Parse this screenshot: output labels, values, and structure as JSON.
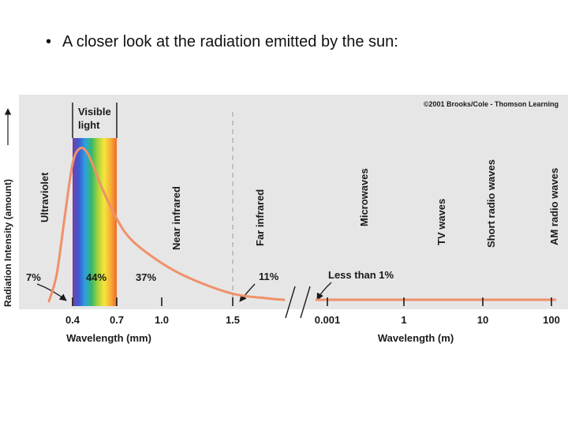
{
  "slide": {
    "bullet": "•",
    "text": "A closer look at the radiation emitted by the sun:"
  },
  "copyright": "©2001 Brooks/Cole - Thomson Learning",
  "colors": {
    "panel_bg": "#e6e6e6",
    "curve": "#f0906a",
    "spectrum": [
      "#7b3fa0",
      "#3a5bd4",
      "#2fa0e0",
      "#33b86a",
      "#a8d23a",
      "#f5e63c",
      "#f7b035",
      "#ef6a2a"
    ]
  },
  "chart_data": {
    "type": "line",
    "ylabel": "Radiation Intensity (amount)",
    "axes": [
      {
        "xlabel": "Wavelength (mm)",
        "ticks": [
          "0.4",
          "0.7",
          "1.0",
          "1.5"
        ]
      },
      {
        "xlabel": "Wavelength (m)",
        "ticks": [
          "0.001",
          "1",
          "10",
          "100"
        ]
      }
    ],
    "curve_x_mm": [
      0.25,
      0.3,
      0.35,
      0.4,
      0.45,
      0.5,
      0.55,
      0.6,
      0.7,
      0.8,
      1.0,
      1.2,
      1.5,
      1.7,
      1.8
    ],
    "curve_y_rel": [
      0.0,
      0.18,
      0.55,
      0.9,
      1.0,
      0.97,
      0.86,
      0.74,
      0.54,
      0.4,
      0.25,
      0.15,
      0.05,
      0.02,
      0.01
    ],
    "tail_level_rel": 0.01,
    "regions": [
      {
        "name": "Ultraviolet"
      },
      {
        "name": "Visible light"
      },
      {
        "name": "Near infrared"
      },
      {
        "name": "Far infrared"
      },
      {
        "name": "Microwaves"
      },
      {
        "name": "TV waves"
      },
      {
        "name": "Short radio waves"
      },
      {
        "name": "AM radio waves"
      }
    ],
    "percentages": [
      {
        "label": "7%",
        "region": "Ultraviolet"
      },
      {
        "label": "44%",
        "region": "Visible light"
      },
      {
        "label": "37%",
        "region": "Near infrared"
      },
      {
        "label": "11%",
        "region": "Far infrared"
      },
      {
        "label": "Less than 1%",
        "region": "Microwaves and longer"
      }
    ]
  }
}
